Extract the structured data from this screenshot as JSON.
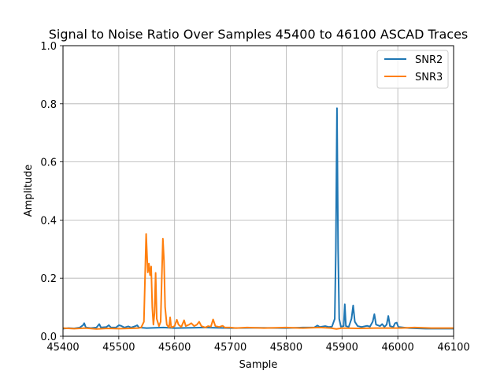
{
  "chart_data": {
    "type": "line",
    "title": "Signal to Noise Ratio Over Samples 45400 to 46100 ASCAD Traces",
    "xlabel": "Sample",
    "ylabel": "Amplitude",
    "xlim": [
      45400,
      46100
    ],
    "ylim": [
      0,
      1.0
    ],
    "xticks": [
      45400,
      45500,
      45600,
      45700,
      45800,
      45900,
      46000,
      46100
    ],
    "yticks": [
      "0.0",
      "0.2",
      "0.4",
      "0.6",
      "0.8",
      "1.0"
    ],
    "grid": true,
    "legend_position": "top-right",
    "series": [
      {
        "name": "SNR2",
        "color": "#1f77b4",
        "points": [
          [
            45400,
            0.026
          ],
          [
            45410,
            0.028
          ],
          [
            45420,
            0.027
          ],
          [
            45430,
            0.03
          ],
          [
            45436,
            0.038
          ],
          [
            45438,
            0.045
          ],
          [
            45441,
            0.03
          ],
          [
            45450,
            0.028
          ],
          [
            45460,
            0.03
          ],
          [
            45465,
            0.042
          ],
          [
            45468,
            0.03
          ],
          [
            45478,
            0.032
          ],
          [
            45482,
            0.038
          ],
          [
            45486,
            0.03
          ],
          [
            45495,
            0.03
          ],
          [
            45500,
            0.038
          ],
          [
            45504,
            0.036
          ],
          [
            45510,
            0.03
          ],
          [
            45517,
            0.034
          ],
          [
            45522,
            0.03
          ],
          [
            45530,
            0.035
          ],
          [
            45533,
            0.038
          ],
          [
            45536,
            0.03
          ],
          [
            45550,
            0.028
          ],
          [
            45580,
            0.03
          ],
          [
            45600,
            0.028
          ],
          [
            45650,
            0.03
          ],
          [
            45700,
            0.028
          ],
          [
            45750,
            0.029
          ],
          [
            45800,
            0.028
          ],
          [
            45830,
            0.03
          ],
          [
            45850,
            0.03
          ],
          [
            45856,
            0.037
          ],
          [
            45860,
            0.032
          ],
          [
            45870,
            0.035
          ],
          [
            45876,
            0.032
          ],
          [
            45882,
            0.033
          ],
          [
            45887,
            0.06
          ],
          [
            45889,
            0.3
          ],
          [
            45891,
            0.785
          ],
          [
            45893,
            0.3
          ],
          [
            45895,
            0.06
          ],
          [
            45898,
            0.033
          ],
          [
            45903,
            0.035
          ],
          [
            45905,
            0.11
          ],
          [
            45907,
            0.035
          ],
          [
            45912,
            0.032
          ],
          [
            45917,
            0.06
          ],
          [
            45920,
            0.106
          ],
          [
            45923,
            0.05
          ],
          [
            45928,
            0.035
          ],
          [
            45935,
            0.032
          ],
          [
            45945,
            0.036
          ],
          [
            45950,
            0.033
          ],
          [
            45955,
            0.05
          ],
          [
            45958,
            0.076
          ],
          [
            45961,
            0.04
          ],
          [
            45968,
            0.035
          ],
          [
            45972,
            0.042
          ],
          [
            45976,
            0.032
          ],
          [
            45980,
            0.04
          ],
          [
            45983,
            0.07
          ],
          [
            45986,
            0.035
          ],
          [
            45992,
            0.032
          ],
          [
            45995,
            0.045
          ],
          [
            45998,
            0.047
          ],
          [
            46001,
            0.032
          ],
          [
            46010,
            0.03
          ],
          [
            46020,
            0.028
          ],
          [
            46050,
            0.026
          ],
          [
            46080,
            0.026
          ],
          [
            46100,
            0.026
          ]
        ]
      },
      {
        "name": "SNR3",
        "color": "#ff7f0e",
        "points": [
          [
            45400,
            0.028
          ],
          [
            45420,
            0.026
          ],
          [
            45440,
            0.028
          ],
          [
            45460,
            0.025
          ],
          [
            45480,
            0.027
          ],
          [
            45500,
            0.026
          ],
          [
            45520,
            0.027
          ],
          [
            45535,
            0.028
          ],
          [
            45540,
            0.03
          ],
          [
            45545,
            0.05
          ],
          [
            45547,
            0.2
          ],
          [
            45549,
            0.352
          ],
          [
            45551,
            0.26
          ],
          [
            45552,
            0.22
          ],
          [
            45554,
            0.25
          ],
          [
            45556,
            0.21
          ],
          [
            45558,
            0.24
          ],
          [
            45560,
            0.1
          ],
          [
            45562,
            0.04
          ],
          [
            45564,
            0.08
          ],
          [
            45566,
            0.218
          ],
          [
            45568,
            0.06
          ],
          [
            45572,
            0.035
          ],
          [
            45575,
            0.05
          ],
          [
            45577,
            0.2
          ],
          [
            45579,
            0.336
          ],
          [
            45581,
            0.26
          ],
          [
            45583,
            0.1
          ],
          [
            45586,
            0.04
          ],
          [
            45590,
            0.03
          ],
          [
            45592,
            0.065
          ],
          [
            45594,
            0.03
          ],
          [
            45600,
            0.035
          ],
          [
            45604,
            0.057
          ],
          [
            45607,
            0.04
          ],
          [
            45612,
            0.032
          ],
          [
            45617,
            0.055
          ],
          [
            45620,
            0.035
          ],
          [
            45626,
            0.04
          ],
          [
            45630,
            0.045
          ],
          [
            45635,
            0.035
          ],
          [
            45640,
            0.04
          ],
          [
            45644,
            0.05
          ],
          [
            45648,
            0.035
          ],
          [
            45655,
            0.03
          ],
          [
            45660,
            0.035
          ],
          [
            45665,
            0.033
          ],
          [
            45669,
            0.058
          ],
          [
            45673,
            0.035
          ],
          [
            45680,
            0.032
          ],
          [
            45686,
            0.036
          ],
          [
            45690,
            0.03
          ],
          [
            45700,
            0.03
          ],
          [
            45710,
            0.028
          ],
          [
            45730,
            0.03
          ],
          [
            45760,
            0.028
          ],
          [
            45800,
            0.03
          ],
          [
            45830,
            0.028
          ],
          [
            45860,
            0.03
          ],
          [
            45880,
            0.028
          ],
          [
            45890,
            0.025
          ],
          [
            45900,
            0.028
          ],
          [
            45930,
            0.027
          ],
          [
            45960,
            0.028
          ],
          [
            46000,
            0.028
          ],
          [
            46030,
            0.03
          ],
          [
            46060,
            0.028
          ],
          [
            46100,
            0.028
          ]
        ]
      }
    ]
  }
}
